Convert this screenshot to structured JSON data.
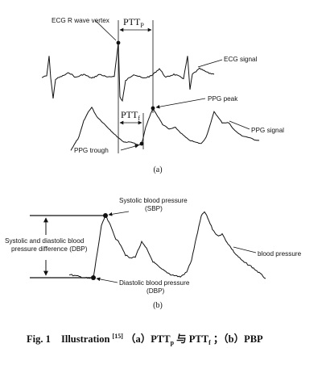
{
  "panel_a": {
    "marker": "(a)",
    "ecg_vertex_label": "ECG R wave vertex",
    "ptt_p_main": "PTT",
    "ptt_p_sub": "P",
    "ptt_f_main": "PTT",
    "ptt_f_sub": "f",
    "ecg_signal_label": "ECG signal",
    "ppg_peak_label": "PPG peak",
    "ppg_signal_label": "PPG signal",
    "ppg_trough_label": "PPG trough"
  },
  "panel_b": {
    "marker": "(b)",
    "sbp_label_line1": "Systolic blood pressure",
    "sbp_label_line2": "(SBP)",
    "diff_label_line1": "Systolic and diastolic blood",
    "diff_label_line2": "pressure difference (DBP)",
    "bp_label": "blood pressure",
    "dbp_label_line1": "Diastolic blood pressure",
    "dbp_label_line2": "(DBP)"
  },
  "caption": {
    "fig": "Fig. 1",
    "illustration": "Illustration",
    "ref": "[15]",
    "a_part": "（a）PTT",
    "a_sub": "p",
    "and_text": "与 PTT",
    "f_sub": "f",
    "b_part": "；（b）PBP"
  }
}
